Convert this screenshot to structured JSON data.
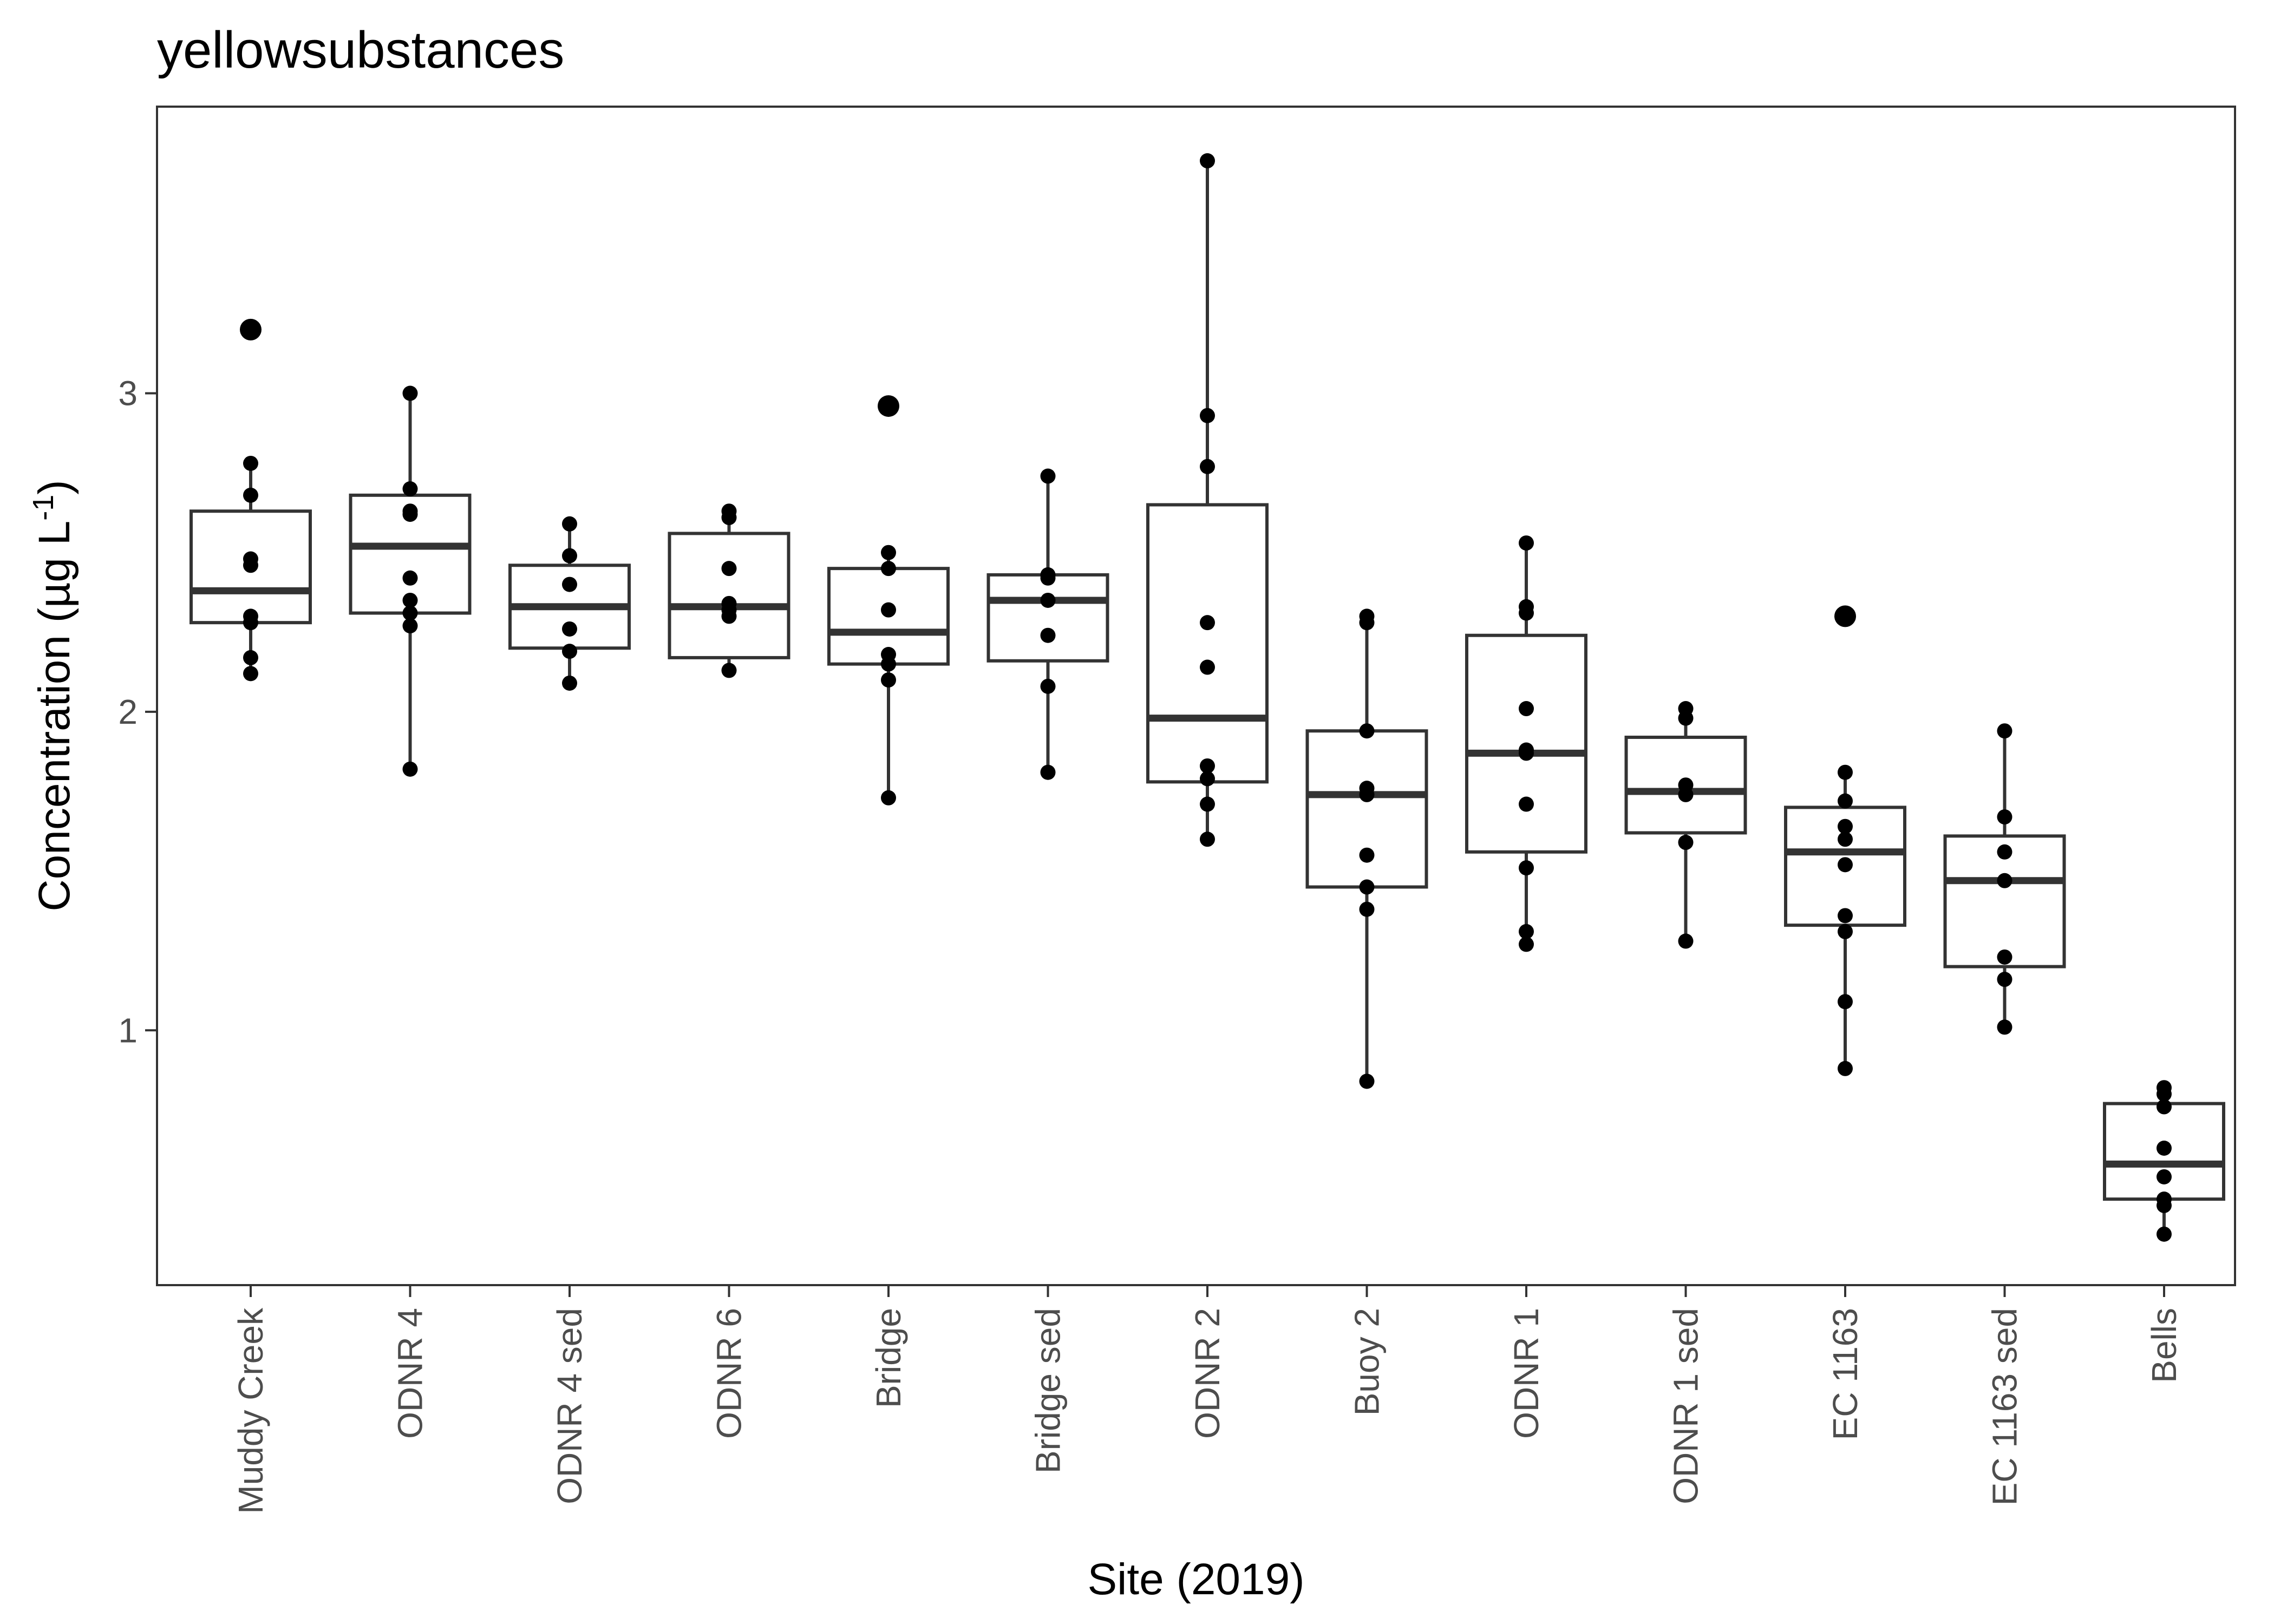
{
  "chart_data": {
    "type": "box",
    "title": "yellowsubstances",
    "xlabel": "Site (2019)",
    "ylabel_prefix": "Concentration (µg L",
    "ylabel_sup": "-1",
    "ylabel_suffix": ")",
    "ylim": [
      0.2,
      3.9
    ],
    "yticks": [
      1,
      2,
      3
    ],
    "grid": false,
    "categories": [
      "Muddy Creek",
      "ODNR 4",
      "ODNR 4 sed",
      "ODNR 6",
      "Bridge",
      "Bridge sed",
      "ODNR 2",
      "Buoy 2",
      "ODNR 1",
      "ODNR 1 sed",
      "EC 1163",
      "EC 1163 sed",
      "Bells"
    ],
    "boxes": [
      {
        "site": "Muddy Creek",
        "whisker_low": 2.12,
        "q1": 2.28,
        "median": 2.38,
        "q3": 2.63,
        "whisker_high": 2.78,
        "points": [
          3.2,
          3.2,
          2.78,
          2.68,
          2.48,
          2.46,
          2.3,
          2.28,
          2.17,
          2.12
        ],
        "outliers": [
          3.2
        ]
      },
      {
        "site": "ODNR 4",
        "whisker_low": 1.82,
        "q1": 2.31,
        "median": 2.52,
        "q3": 2.68,
        "whisker_high": 3.0,
        "points": [
          3.0,
          2.7,
          2.63,
          2.62,
          2.42,
          2.35,
          2.31,
          2.27,
          1.82
        ],
        "outliers": []
      },
      {
        "site": "ODNR 4 sed",
        "whisker_low": 2.09,
        "q1": 2.2,
        "median": 2.33,
        "q3": 2.46,
        "whisker_high": 2.59,
        "points": [
          2.59,
          2.49,
          2.4,
          2.26,
          2.19,
          2.09
        ],
        "outliers": []
      },
      {
        "site": "ODNR 6",
        "whisker_low": 2.13,
        "q1": 2.17,
        "median": 2.33,
        "q3": 2.56,
        "whisker_high": 2.63,
        "points": [
          2.63,
          2.61,
          2.45,
          2.34,
          2.32,
          2.3,
          2.13
        ],
        "outliers": []
      },
      {
        "site": "Bridge",
        "whisker_low": 1.73,
        "q1": 2.15,
        "median": 2.25,
        "q3": 2.45,
        "whisker_high": 2.5,
        "points": [
          2.96,
          2.96,
          2.5,
          2.45,
          2.32,
          2.18,
          2.15,
          2.1,
          1.73
        ],
        "outliers": [
          2.96
        ]
      },
      {
        "site": "Bridge sed",
        "whisker_low": 1.81,
        "q1": 2.16,
        "median": 2.35,
        "q3": 2.43,
        "whisker_high": 2.74,
        "points": [
          2.74,
          2.43,
          2.42,
          2.35,
          2.24,
          2.08,
          1.81
        ],
        "outliers": []
      },
      {
        "site": "ODNR 2",
        "whisker_low": 1.6,
        "q1": 1.78,
        "median": 1.98,
        "q3": 2.65,
        "whisker_high": 3.73,
        "points": [
          3.73,
          2.93,
          2.77,
          2.28,
          2.14,
          1.83,
          1.79,
          1.71,
          1.6
        ],
        "outliers": []
      },
      {
        "site": "Buoy 2",
        "whisker_low": 0.84,
        "q1": 1.45,
        "median": 1.74,
        "q3": 1.94,
        "whisker_high": 2.3,
        "points": [
          2.3,
          2.28,
          1.94,
          1.76,
          1.74,
          1.55,
          1.45,
          1.38,
          0.84
        ],
        "outliers": []
      },
      {
        "site": "ODNR 1",
        "whisker_low": 1.26,
        "q1": 1.56,
        "median": 1.87,
        "q3": 2.24,
        "whisker_high": 2.53,
        "points": [
          2.53,
          2.33,
          2.31,
          2.01,
          1.88,
          1.87,
          1.71,
          1.51,
          1.31,
          1.27
        ],
        "outliers": []
      },
      {
        "site": "ODNR 1 sed",
        "whisker_low": 1.28,
        "q1": 1.62,
        "median": 1.75,
        "q3": 1.92,
        "whisker_high": 2.01,
        "points": [
          2.01,
          1.98,
          1.77,
          1.74,
          1.59,
          1.28
        ],
        "outliers": []
      },
      {
        "site": "EC 1163",
        "whisker_low": 0.88,
        "q1": 1.33,
        "median": 1.56,
        "q3": 1.7,
        "whisker_high": 1.81,
        "points": [
          2.3,
          2.3,
          1.81,
          1.72,
          1.64,
          1.6,
          1.52,
          1.36,
          1.31,
          1.09,
          0.88
        ],
        "outliers": [
          2.3
        ]
      },
      {
        "site": "EC 1163 sed",
        "whisker_low": 1.01,
        "q1": 1.2,
        "median": 1.47,
        "q3": 1.61,
        "whisker_high": 1.94,
        "points": [
          1.94,
          1.67,
          1.56,
          1.47,
          1.23,
          1.16,
          1.01
        ],
        "outliers": []
      },
      {
        "site": "Bells",
        "whisker_low": 0.36,
        "q1": 0.47,
        "median": 0.58,
        "q3": 0.77,
        "whisker_high": 0.82,
        "points": [
          0.82,
          0.8,
          0.76,
          0.63,
          0.54,
          0.47,
          0.45,
          0.36
        ],
        "outliers": []
      }
    ]
  }
}
